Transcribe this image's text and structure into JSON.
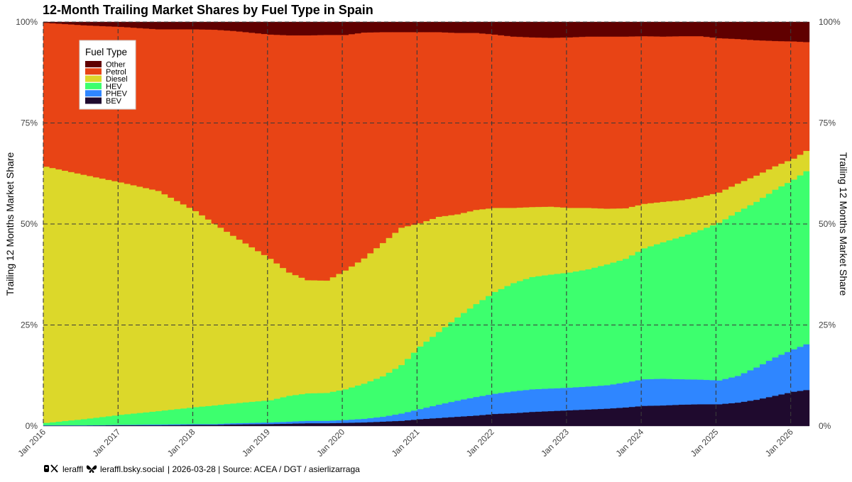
{
  "chart_data": {
    "type": "area",
    "stacked": true,
    "title": "12-Month Trailing Market Shares by Fuel Type in Spain",
    "xlabel": "",
    "ylabel": "Trailing 12 Months Market Share",
    "ylabel_right": "Trailing 12 Months Market Share",
    "ylim": [
      0,
      100
    ],
    "yticks": [
      0,
      25,
      50,
      75,
      100
    ],
    "ytick_labels": [
      "0%",
      "25%",
      "50%",
      "75%",
      "100%"
    ],
    "xlim": [
      2016.0,
      2026.25
    ],
    "xticks": [
      2016,
      2017,
      2018,
      2019,
      2020,
      2021,
      2022,
      2023,
      2024,
      2025,
      2026
    ],
    "xtick_labels": [
      "Jan 2016",
      "Jan 2017",
      "Jan 2018",
      "Jan 2019",
      "Jan 2020",
      "Jan 2021",
      "Jan 2022",
      "Jan 2023",
      "Jan 2024",
      "Jan 2025",
      "Jan 2026"
    ],
    "grid": true,
    "legend": {
      "title": "Fuel Type",
      "position": "top-left"
    },
    "x": [
      2016.0,
      2016.5,
      2017.0,
      2017.5,
      2018.0,
      2018.25,
      2018.5,
      2019.0,
      2019.25,
      2019.5,
      2019.75,
      2020.0,
      2020.25,
      2020.5,
      2020.75,
      2021.0,
      2021.25,
      2021.5,
      2021.75,
      2022.0,
      2022.25,
      2022.5,
      2022.75,
      2023.0,
      2023.25,
      2023.5,
      2023.75,
      2024.0,
      2024.25,
      2024.5,
      2024.75,
      2025.0,
      2025.25,
      2025.5,
      2025.75,
      2026.0,
      2026.2
    ],
    "series": [
      {
        "name": "BEV",
        "color": "#1f0a2e",
        "values": [
          0.1,
          0.1,
          0.2,
          0.2,
          0.3,
          0.3,
          0.4,
          0.5,
          0.6,
          0.7,
          0.7,
          0.8,
          0.9,
          1.1,
          1.3,
          1.7,
          2.0,
          2.3,
          2.6,
          3.0,
          3.2,
          3.5,
          3.7,
          3.9,
          4.1,
          4.3,
          4.6,
          5.0,
          5.1,
          5.3,
          5.4,
          5.4,
          5.8,
          6.5,
          7.5,
          8.5,
          9.0
        ]
      },
      {
        "name": "PHEV",
        "color": "#2f86ff",
        "values": [
          0.1,
          0.1,
          0.1,
          0.2,
          0.2,
          0.2,
          0.3,
          0.4,
          0.5,
          0.6,
          0.6,
          0.7,
          0.9,
          1.2,
          1.8,
          2.5,
          3.3,
          4.0,
          4.6,
          5.0,
          5.4,
          5.6,
          5.6,
          5.6,
          5.7,
          5.8,
          6.2,
          6.6,
          6.6,
          6.3,
          6.1,
          5.9,
          6.6,
          8.0,
          9.5,
          10.5,
          11.5
        ]
      },
      {
        "name": "HEV",
        "color": "#3dff6e",
        "values": [
          0.6,
          1.5,
          2.5,
          3.3,
          4.2,
          4.6,
          4.9,
          5.5,
          6.4,
          6.8,
          6.9,
          7.6,
          8.7,
          10.0,
          12.0,
          15.5,
          18.0,
          20.6,
          23.0,
          25.2,
          26.8,
          27.8,
          28.2,
          28.5,
          29.0,
          29.9,
          30.6,
          32.4,
          33.8,
          35.3,
          37.0,
          39.0,
          40.6,
          41.0,
          41.5,
          42.0,
          43.0
        ]
      },
      {
        "name": "Diesel",
        "color": "#dcd82a",
        "values": [
          63.4,
          60.5,
          57.5,
          54.5,
          48.5,
          45.0,
          41.5,
          35.0,
          30.5,
          28.0,
          27.8,
          29.4,
          31.0,
          33.0,
          34.0,
          30.5,
          28.5,
          25.5,
          23.3,
          20.8,
          18.6,
          17.3,
          16.8,
          16.0,
          15.2,
          13.8,
          12.5,
          11.0,
          10.0,
          9.0,
          8.2,
          7.5,
          7.0,
          6.5,
          5.8,
          5.2,
          5.0
        ]
      },
      {
        "name": "Petrol",
        "color": "#e84415",
        "values": [
          35.6,
          37.0,
          38.5,
          40.0,
          45.0,
          48.0,
          50.7,
          55.5,
          58.7,
          60.6,
          60.8,
          58.3,
          55.9,
          52.2,
          48.4,
          47.3,
          45.7,
          44.9,
          43.8,
          42.9,
          42.4,
          42.0,
          41.8,
          42.2,
          42.4,
          42.6,
          42.5,
          41.5,
          40.9,
          40.6,
          39.8,
          38.2,
          35.8,
          33.5,
          31.0,
          29.0,
          26.5
        ]
      },
      {
        "name": "Other",
        "color": "#600000",
        "values": [
          0.2,
          0.8,
          1.2,
          1.8,
          1.8,
          1.9,
          2.2,
          3.1,
          3.3,
          3.3,
          3.2,
          3.2,
          2.6,
          2.5,
          2.5,
          2.5,
          2.5,
          2.7,
          2.7,
          3.1,
          3.6,
          3.8,
          3.9,
          3.8,
          3.6,
          3.6,
          3.6,
          3.5,
          3.6,
          3.5,
          3.5,
          4.0,
          4.2,
          4.5,
          4.7,
          4.8,
          5.0
        ]
      }
    ]
  },
  "footer": {
    "handle": "leraffl",
    "bluesky": "leraffl.bsky.social",
    "info": "| 2026-03-28 | Source: ACEA / DGT / asierlizarraga"
  },
  "icons": {
    "threads": "threads-icon",
    "x": "x-icon",
    "bluesky": "butterfly-icon"
  }
}
